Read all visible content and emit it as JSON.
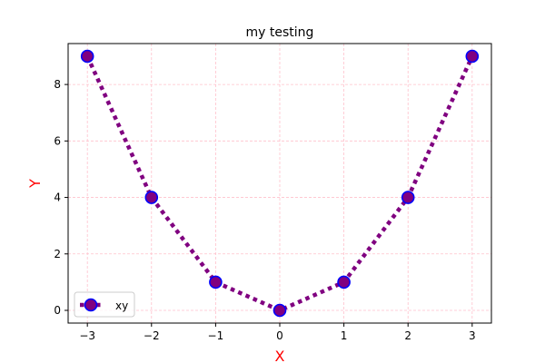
{
  "chart_data": {
    "type": "line",
    "title": "my testing",
    "xlabel": "X",
    "ylabel": "Y",
    "x": [
      -3,
      -2,
      -1,
      0,
      1,
      2,
      3
    ],
    "series": [
      {
        "name": "xy",
        "values": [
          9,
          4,
          1,
          0,
          1,
          4,
          9
        ]
      }
    ],
    "xlim": [
      -3.3,
      3.3
    ],
    "ylim": [
      -0.45,
      9.45
    ],
    "xticks": [
      -3,
      -2,
      -1,
      0,
      1,
      2,
      3
    ],
    "yticks": [
      0,
      2,
      4,
      6,
      8
    ],
    "grid": true,
    "legend_position": "lower-left",
    "colors": {
      "line": "#800080",
      "marker_face": "#800080",
      "marker_edge": "#0000ff",
      "grid": "#ffc0cb",
      "axis_label": "#ff0000",
      "frame": "#000000"
    },
    "line_style": "dotted",
    "marker": "circle"
  }
}
